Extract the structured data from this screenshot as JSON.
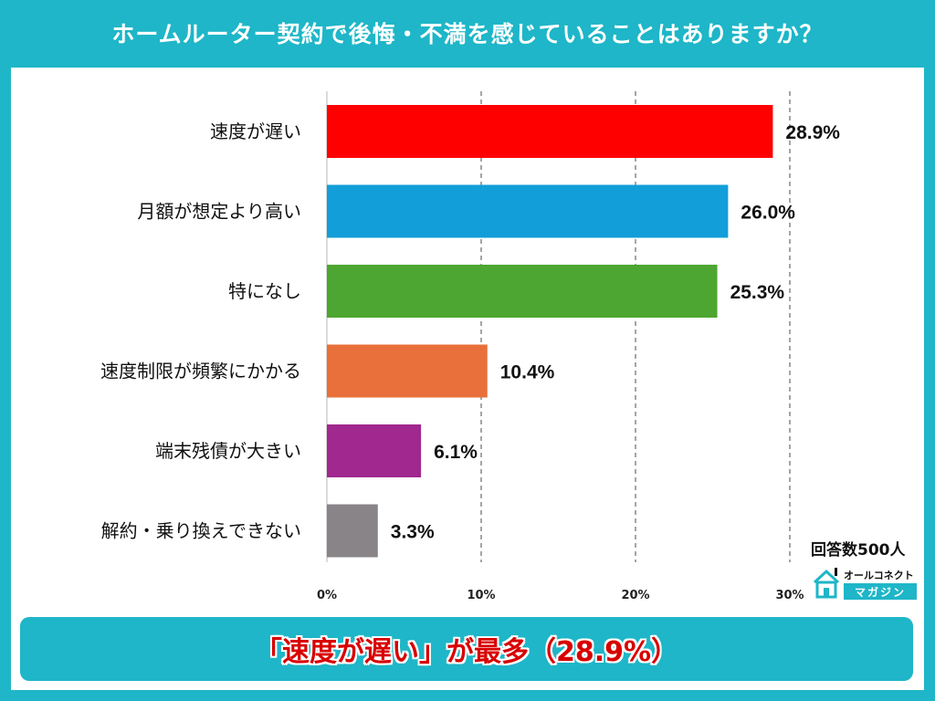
{
  "title": "ホームルーター契約で後悔・不満を感じていることはありますか？",
  "respondents": "回答数500人",
  "logo": {
    "top_text": "オールコネクト",
    "bottom_text": "マガジン",
    "icon": "house-icon"
  },
  "banner": "「速度が遅い」が最多（28.9%）",
  "colors": {
    "frame": "#1eb6c8",
    "banner_text": "#d80000"
  },
  "chart_data": {
    "type": "bar",
    "orientation": "horizontal",
    "categories": [
      "速度が遅い",
      "月額が想定より高い",
      "特になし",
      "速度制限が頻繁にかかる",
      "端末残債が大きい",
      "解約・乗り換えできない"
    ],
    "values": [
      28.9,
      26.0,
      25.3,
      10.4,
      6.1,
      3.3
    ],
    "value_labels": [
      "28.9%",
      "26.0%",
      "25.3%",
      "10.4%",
      "6.1%",
      "3.3%"
    ],
    "colors": [
      "#ff0000",
      "#129ed8",
      "#4da631",
      "#e9703a",
      "#a0288f",
      "#888488"
    ],
    "xlim": [
      0,
      30
    ],
    "xticks": [
      0,
      10,
      20,
      30
    ],
    "xtick_labels": [
      "0%",
      "10%",
      "20%",
      "30%"
    ],
    "grid": true,
    "xlabel": "",
    "ylabel": ""
  }
}
